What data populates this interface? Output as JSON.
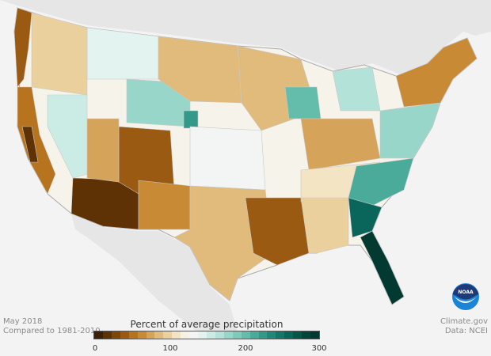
{
  "map": {
    "title": "Percent of average precipitation",
    "period": "May 2018",
    "baseline": "Compared to 1981-2010",
    "credit": "Climate.gov",
    "source": "Data: NCEI",
    "logo_text": "NOAA",
    "legend": {
      "min": 0,
      "max": 300,
      "ticks": [
        "0",
        "100",
        "200",
        "300"
      ],
      "colors": [
        "#3d2106",
        "#5e3205",
        "#7e4609",
        "#9a5a12",
        "#b8731f",
        "#c88a35",
        "#d6a35a",
        "#e0bb7b",
        "#ead09d",
        "#f3e4c4",
        "#f6f1e3",
        "#f2f5f4",
        "#e2f3f0",
        "#cbece5",
        "#b2e2d8",
        "#98d6c9",
        "#7ecabb",
        "#64bcab",
        "#4aab9a",
        "#35998a",
        "#22877a",
        "#14766b",
        "#0a665b",
        "#05554b",
        "#03443b",
        "#023a32"
      ]
    },
    "colors": {
      "ocean": "#f3f3f3",
      "neighbors": "#e4e4e4",
      "state_border": "#b8b8b8"
    }
  }
}
